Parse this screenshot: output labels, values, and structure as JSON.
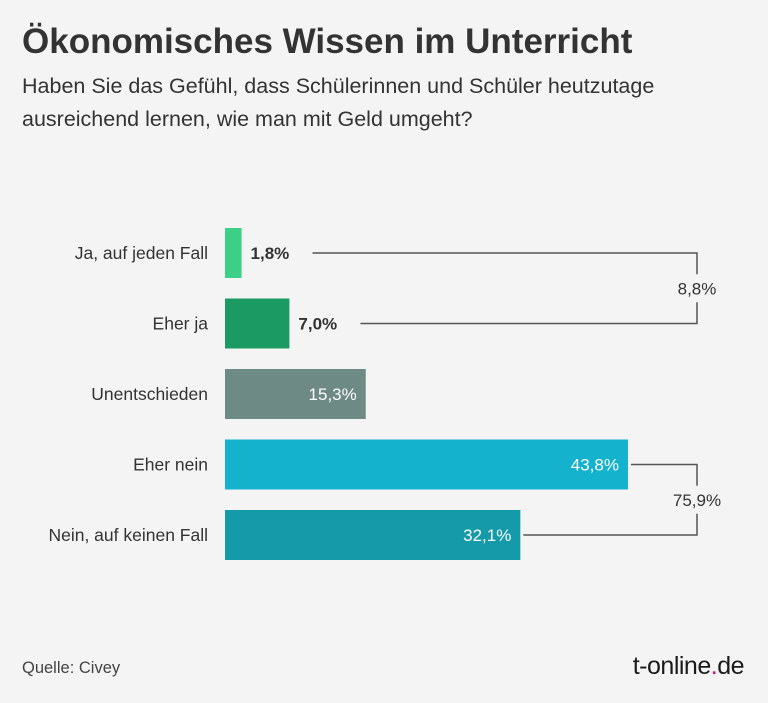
{
  "chart_data": {
    "type": "bar",
    "orientation": "horizontal",
    "title": "Ökonomisches Wissen im Unterricht",
    "subtitle": "Haben Sie das Gefühl, dass Schülerinnen und Schüler heutzutage ausreichend lernen, wie man mit Geld umgeht?",
    "categories": [
      "Ja, auf jeden Fall",
      "Eher ja",
      "Unentschieden",
      "Eher nein",
      "Nein, auf keinen Fall"
    ],
    "values": [
      1.8,
      7.0,
      15.3,
      43.8,
      32.1
    ],
    "value_labels": [
      "1,8%",
      "7,0%",
      "15,3%",
      "43,8%",
      "32,1%"
    ],
    "colors": [
      "#3ccf87",
      "#1b9a63",
      "#6e8a85",
      "#14b2cc",
      "#149aa8"
    ],
    "xlim": [
      0,
      50
    ],
    "grid": false,
    "annotations": [
      {
        "label": "8,8%",
        "value": 8.8,
        "spans": [
          0,
          1
        ]
      },
      {
        "label": "75,9%",
        "value": 75.9,
        "spans": [
          3,
          4
        ]
      }
    ]
  },
  "footer": {
    "source": "Quelle: Civey",
    "logo_main": "t-online",
    "logo_dot": ".",
    "logo_tld": "de"
  }
}
